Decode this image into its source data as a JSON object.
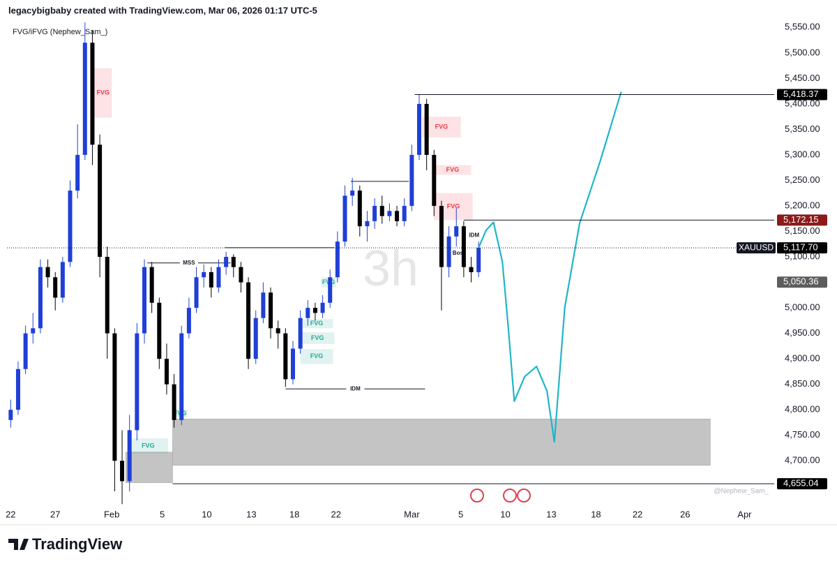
{
  "header": {
    "caption": "legacybigbaby created with TradingView.com, Mar 06, 2026 01:17 UTC-5",
    "indicator": "FVG/iFVG (Nephew_Sam_)",
    "watermark": "3h",
    "credit": "@Nephew_Sam_",
    "brand": "TradingView"
  },
  "chart_data": {
    "type": "candlestick",
    "symbol": "XAUUSD",
    "up_color": "#1f3fd6",
    "down_color": "#000000",
    "xlim": [
      -0.25,
      51.4
    ],
    "ylim": [
      4610,
      5560
    ],
    "xticks": [
      {
        "value": 0,
        "label": "22"
      },
      {
        "value": 3,
        "label": "27"
      },
      {
        "value": 6.8,
        "label": "Feb"
      },
      {
        "value": 10.2,
        "label": "5"
      },
      {
        "value": 13.2,
        "label": "10"
      },
      {
        "value": 16.2,
        "label": "13"
      },
      {
        "value": 19.1,
        "label": "18"
      },
      {
        "value": 21.9,
        "label": "22"
      },
      {
        "value": 27,
        "label": "Mar"
      },
      {
        "value": 30.3,
        "label": "5"
      },
      {
        "value": 33.3,
        "label": "10"
      },
      {
        "value": 36.4,
        "label": "13"
      },
      {
        "value": 39.4,
        "label": "18"
      },
      {
        "value": 42.2,
        "label": "22"
      },
      {
        "value": 45.4,
        "label": "26"
      },
      {
        "value": 49.4,
        "label": "Apr"
      }
    ],
    "yticks": [
      {
        "value": 4700,
        "label": "4,700.00"
      },
      {
        "value": 4750,
        "label": "4,750.00"
      },
      {
        "value": 4800,
        "label": "4,800.00"
      },
      {
        "value": 4850,
        "label": "4,850.00"
      },
      {
        "value": 4900,
        "label": "4,900.00"
      },
      {
        "value": 4950,
        "label": "4,950.00"
      },
      {
        "value": 5000,
        "label": "5,000.00"
      },
      {
        "value": 5050,
        "label": "5,050.00"
      },
      {
        "value": 5100,
        "label": "5,100.00"
      },
      {
        "value": 5150,
        "label": "5,150.00"
      },
      {
        "value": 5200,
        "label": "5,200.00"
      },
      {
        "value": 5250,
        "label": "5,250.00"
      },
      {
        "value": 5300,
        "label": "5,300.00"
      },
      {
        "value": 5350,
        "label": "5,350.00"
      },
      {
        "value": 5400,
        "label": "5,400.00"
      },
      {
        "value": 5450,
        "label": "5,450.00"
      },
      {
        "value": 5500,
        "label": "5,500.00"
      },
      {
        "value": 5550,
        "label": "5,550.00"
      }
    ],
    "x": [
      0,
      0.5,
      1,
      1.5,
      2,
      2.5,
      3,
      3.5,
      4,
      4.5,
      5,
      5.5,
      6,
      6.5,
      7,
      7.5,
      8,
      8.5,
      9,
      9.5,
      10,
      10.5,
      11,
      11.5,
      12,
      12.5,
      13,
      13.5,
      14,
      14.5,
      15,
      15.5,
      16,
      16.5,
      17,
      17.5,
      18,
      18.5,
      19,
      19.5,
      20,
      20.5,
      21,
      21.5,
      22,
      22.5,
      23,
      23.5,
      24,
      24.5,
      25,
      25.5,
      26,
      26.5,
      27,
      27.5,
      28,
      28.5,
      29,
      29.5,
      30,
      30.5,
      31,
      31.5
    ],
    "open": [
      4780,
      4800,
      4880,
      4950,
      4960,
      5080,
      5060,
      5020,
      5090,
      5230,
      5300,
      5520,
      5320,
      5100,
      4950,
      4700,
      4660,
      4760,
      4950,
      5080,
      5010,
      4900,
      4850,
      4780,
      4950,
      5000,
      5060,
      5070,
      5040,
      5080,
      5100,
      5080,
      5050,
      4900,
      4980,
      5030,
      4960,
      4950,
      4860,
      4920,
      4980,
      5000,
      4990,
      5010,
      5060,
      5130,
      5220,
      5230,
      5160,
      5170,
      5200,
      5180,
      5190,
      5170,
      5200,
      5300,
      5400,
      5300,
      5200,
      5080,
      5140,
      5160,
      5080,
      5070
    ],
    "high": [
      4820,
      4895,
      4965,
      4990,
      5095,
      5095,
      5070,
      5100,
      5250,
      5360,
      5560,
      5545,
      5340,
      5120,
      4960,
      4760,
      4790,
      4970,
      5095,
      5090,
      5020,
      4930,
      4870,
      4965,
      5020,
      5080,
      5085,
      5080,
      5095,
      5110,
      5105,
      5090,
      5060,
      4995,
      5050,
      5040,
      4975,
      4960,
      4935,
      4995,
      5015,
      5010,
      5025,
      5075,
      5150,
      5240,
      5255,
      5240,
      5190,
      5215,
      5220,
      5205,
      5200,
      5215,
      5320,
      5418.37,
      5410,
      5310,
      5210,
      5160,
      5195,
      5170,
      5100,
      5130
    ],
    "low": [
      4765,
      4790,
      4870,
      4930,
      4950,
      5040,
      4995,
      5010,
      5080,
      5215,
      5290,
      5280,
      5060,
      4900,
      4640,
      4615,
      4640,
      4740,
      4930,
      4990,
      4880,
      4830,
      4765,
      4770,
      4940,
      4990,
      5040,
      5020,
      5030,
      5065,
      5060,
      5030,
      4880,
      4890,
      4970,
      4940,
      4920,
      4845,
      4850,
      4910,
      4965,
      4975,
      4980,
      5000,
      5050,
      5120,
      5200,
      5140,
      5130,
      5155,
      5165,
      5170,
      5160,
      5160,
      5190,
      5290,
      5270,
      5180,
      4995,
      5060,
      5120,
      5060,
      5050,
      5060
    ],
    "close": [
      4800,
      4880,
      4950,
      4960,
      5080,
      5060,
      5020,
      5090,
      5230,
      5300,
      5520,
      5320,
      5100,
      4950,
      4700,
      4660,
      4760,
      4950,
      5080,
      5010,
      4900,
      4850,
      4780,
      4950,
      5000,
      5060,
      5070,
      5040,
      5080,
      5100,
      5080,
      5050,
      4900,
      4980,
      5030,
      4960,
      4950,
      4860,
      4920,
      4980,
      5000,
      4990,
      5010,
      5060,
      5130,
      5220,
      5230,
      5160,
      5170,
      5200,
      5180,
      5190,
      5170,
      5200,
      5300,
      5400,
      5300,
      5200,
      5080,
      5140,
      5160,
      5080,
      5070,
      5117.7
    ],
    "zones": [
      {
        "x0": 10.9,
        "x1": 47.1,
        "top": 4782,
        "bottom": 4691
      },
      {
        "x0": 7.75,
        "x1": 10.9,
        "top": 4717,
        "bottom": 4657
      }
    ],
    "fvgs": [
      {
        "label": "FVG",
        "kind": "bear",
        "x0": 5.63,
        "x1": 6.81,
        "top": 5470,
        "bottom": 5373
      },
      {
        "label": "FVG",
        "kind": "bear",
        "x0": 27.7,
        "x1": 30.3,
        "top": 5375,
        "bottom": 5334
      },
      {
        "label": "FVG",
        "kind": "bear",
        "x0": 28.5,
        "x1": 31,
        "top": 5280,
        "bottom": 5261
      },
      {
        "label": "FVG",
        "kind": "bear",
        "x0": 28.5,
        "x1": 31.1,
        "top": 5225,
        "bottom": 5172
      },
      {
        "label": "FVG",
        "kind": "bull",
        "x0": 20.9,
        "x1": 21.9,
        "top": 5060,
        "bottom": 5040
      },
      {
        "label": "FVG",
        "kind": "bull",
        "x0": 19.5,
        "x1": 21.7,
        "top": 4978,
        "bottom": 4960
      },
      {
        "label": "FVG",
        "kind": "bull",
        "x0": 19.5,
        "x1": 21.8,
        "top": 4952,
        "bottom": 4929
      },
      {
        "label": "FVG",
        "kind": "bull",
        "x0": 19.5,
        "x1": 21.7,
        "top": 4919,
        "bottom": 4890
      },
      {
        "label": "FVG",
        "kind": "bull",
        "x0": 10.9,
        "x1": 11.9,
        "top": 4800,
        "bottom": 4785
      },
      {
        "label": "FVG",
        "kind": "bull",
        "x0": 7.9,
        "x1": 10.6,
        "top": 4744,
        "bottom": 4714
      }
    ],
    "fvg_colors": {
      "bear": "#f23645",
      "bull": "#22ab94"
    },
    "structure": [
      {
        "label": "MSS",
        "price": 5088,
        "x0": 9.2,
        "x1": 14.8
      },
      {
        "price": 5118,
        "x0": 14.4,
        "x1": 21.8
      },
      {
        "label": "IDM",
        "price": 4841,
        "x0": 18.5,
        "x1": 27.9
      },
      {
        "price": 5248,
        "x0": 22.9,
        "x1": 26.8
      }
    ],
    "annotations": [
      {
        "label": "IDM",
        "x": 31.2,
        "price": 5142
      },
      {
        "label": "Bos",
        "x": 30.1,
        "price": 5107
      }
    ],
    "levels": [
      {
        "value": 5418.37,
        "label": "5,418.37",
        "x0": 27.2,
        "color": "#000000"
      },
      {
        "value": 5172.15,
        "label": "5,172.15",
        "x0": 30.5,
        "color": "#8b1a1a"
      },
      {
        "value": 4655.04,
        "label": "4,655.04",
        "x0": 10.9,
        "color": "#000000"
      },
      {
        "value": 5050.36,
        "label": "5,050.36",
        "color": "#5d5d5d"
      },
      {
        "value": 5117.7,
        "label": "5,117.70",
        "x0": -0.25,
        "color": "#000000",
        "dotted": true
      }
    ],
    "projection": {
      "color": "#1fb5c9",
      "x": [
        31.5,
        32,
        32.5,
        33.1,
        33.5,
        33.9,
        34.6,
        35.4,
        36.1,
        36.6,
        37.3,
        38.3,
        39.7,
        41.1
      ],
      "values": [
        5117.7,
        5152,
        5168,
        5090,
        4960,
        4817,
        4865,
        4885,
        4837,
        4737,
        5001,
        5166,
        5289,
        5424
      ]
    }
  }
}
